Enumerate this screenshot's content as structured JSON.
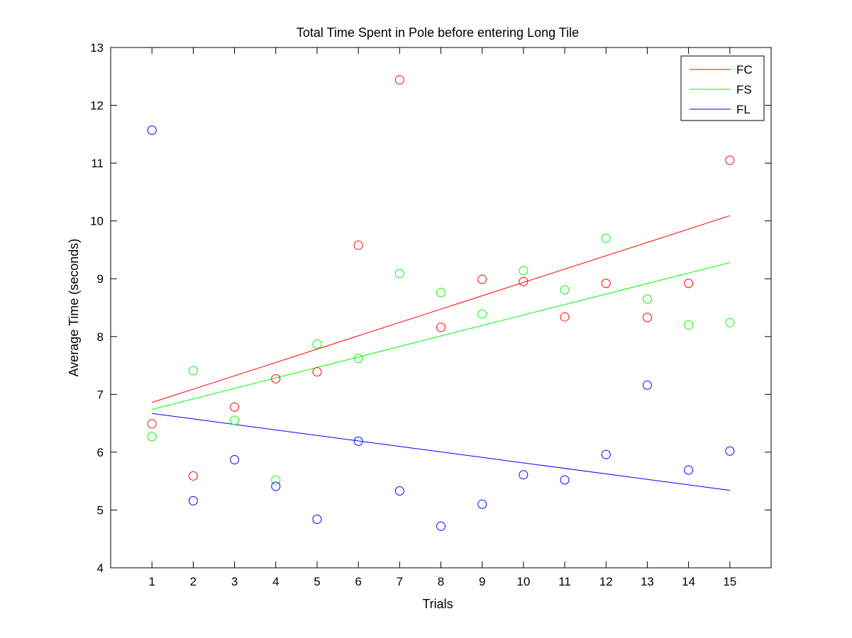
{
  "chart_data": {
    "type": "scatter",
    "title": "Total Time Spent in Pole before entering Long Tile",
    "xlabel": "Trials",
    "ylabel": "Average Time (seconds)",
    "xlim": [
      0,
      16
    ],
    "ylim": [
      4,
      13
    ],
    "x_ticks": [
      1,
      2,
      3,
      4,
      5,
      6,
      7,
      8,
      9,
      10,
      11,
      12,
      13,
      14,
      15
    ],
    "y_ticks": [
      4,
      5,
      6,
      7,
      8,
      9,
      10,
      11,
      12,
      13
    ],
    "grid": false,
    "legend_position": "top-right",
    "x": [
      1,
      2,
      3,
      4,
      5,
      6,
      7,
      8,
      9,
      10,
      11,
      12,
      13,
      14,
      15
    ],
    "series": [
      {
        "name": "FC",
        "color": "#ff0000",
        "values": [
          6.49,
          5.59,
          6.78,
          7.27,
          7.39,
          9.58,
          12.44,
          8.16,
          8.99,
          8.95,
          8.34,
          8.92,
          8.33,
          8.92,
          11.05
        ],
        "trend": {
          "x": [
            1,
            15
          ],
          "y": [
            6.86,
            10.09
          ]
        }
      },
      {
        "name": "FS",
        "color": "#00ff00",
        "values": [
          6.27,
          7.41,
          6.55,
          5.52,
          7.87,
          7.62,
          9.09,
          8.76,
          8.39,
          9.14,
          8.81,
          9.7,
          8.65,
          8.2,
          8.24
        ],
        "trend": {
          "x": [
            1,
            15
          ],
          "y": [
            6.74,
            9.28
          ]
        }
      },
      {
        "name": "FL",
        "color": "#0000ff",
        "values": [
          11.57,
          5.16,
          5.87,
          5.41,
          4.84,
          6.19,
          5.33,
          4.72,
          5.1,
          5.61,
          5.52,
          5.96,
          7.16,
          5.69,
          6.02
        ],
        "trend": {
          "x": [
            1,
            15
          ],
          "y": [
            6.67,
            5.34
          ]
        }
      }
    ]
  }
}
